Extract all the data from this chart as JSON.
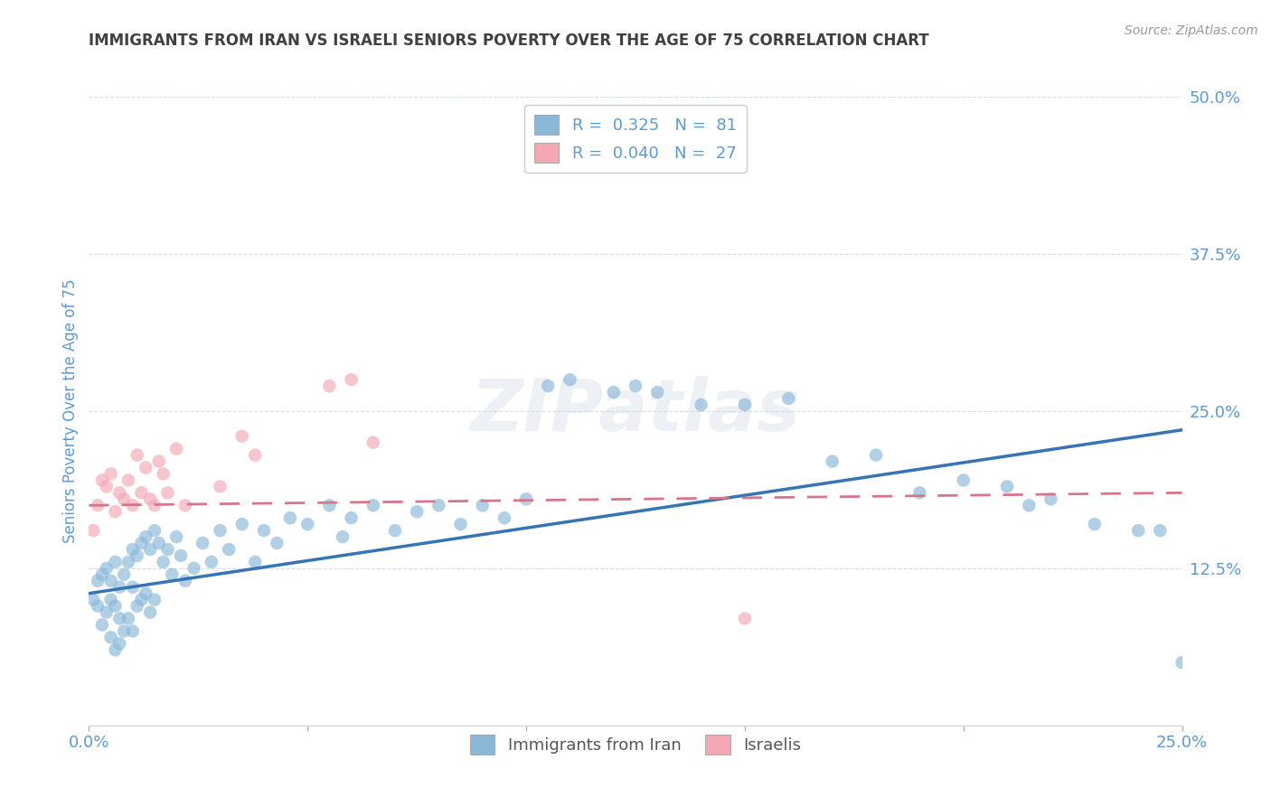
{
  "title": "IMMIGRANTS FROM IRAN VS ISRAELI SENIORS POVERTY OVER THE AGE OF 75 CORRELATION CHART",
  "source": "Source: ZipAtlas.com",
  "ylabel": "Seniors Poverty Over the Age of 75",
  "xlim": [
    0.0,
    0.25
  ],
  "ylim": [
    0.0,
    0.5
  ],
  "xticks": [
    0.0,
    0.05,
    0.1,
    0.15,
    0.2,
    0.25
  ],
  "xticklabels": [
    "0.0%",
    "",
    "",
    "",
    "",
    "25.0%"
  ],
  "yticks": [
    0.0,
    0.125,
    0.25,
    0.375,
    0.5
  ],
  "yticklabels": [
    "",
    "12.5%",
    "25.0%",
    "37.5%",
    "50.0%"
  ],
  "legend_r1": "R =  0.325",
  "legend_n1": "N =  81",
  "legend_r2": "R =  0.040",
  "legend_n2": "N =  27",
  "blue_color": "#89b8d8",
  "pink_color": "#f4a7b4",
  "blue_line_color": "#3574b5",
  "pink_line_color": "#d9748a",
  "axis_label_color": "#5b9bd5",
  "title_color": "#404040",
  "watermark": "ZIPatlas",
  "blue_scatter_x": [
    0.001,
    0.002,
    0.002,
    0.003,
    0.003,
    0.004,
    0.004,
    0.005,
    0.005,
    0.005,
    0.006,
    0.006,
    0.006,
    0.007,
    0.007,
    0.007,
    0.008,
    0.008,
    0.009,
    0.009,
    0.01,
    0.01,
    0.01,
    0.011,
    0.011,
    0.012,
    0.012,
    0.013,
    0.013,
    0.014,
    0.014,
    0.015,
    0.015,
    0.016,
    0.017,
    0.018,
    0.019,
    0.02,
    0.021,
    0.022,
    0.024,
    0.026,
    0.028,
    0.03,
    0.032,
    0.035,
    0.038,
    0.04,
    0.043,
    0.046,
    0.05,
    0.055,
    0.058,
    0.06,
    0.065,
    0.07,
    0.075,
    0.08,
    0.085,
    0.09,
    0.095,
    0.1,
    0.105,
    0.11,
    0.12,
    0.125,
    0.13,
    0.14,
    0.15,
    0.16,
    0.17,
    0.18,
    0.19,
    0.2,
    0.21,
    0.215,
    0.22,
    0.23,
    0.24,
    0.245,
    0.25
  ],
  "blue_scatter_y": [
    0.1,
    0.115,
    0.095,
    0.12,
    0.08,
    0.125,
    0.09,
    0.115,
    0.1,
    0.07,
    0.13,
    0.095,
    0.06,
    0.11,
    0.085,
    0.065,
    0.12,
    0.075,
    0.13,
    0.085,
    0.14,
    0.11,
    0.075,
    0.135,
    0.095,
    0.145,
    0.1,
    0.15,
    0.105,
    0.14,
    0.09,
    0.155,
    0.1,
    0.145,
    0.13,
    0.14,
    0.12,
    0.15,
    0.135,
    0.115,
    0.125,
    0.145,
    0.13,
    0.155,
    0.14,
    0.16,
    0.13,
    0.155,
    0.145,
    0.165,
    0.16,
    0.175,
    0.15,
    0.165,
    0.175,
    0.155,
    0.17,
    0.175,
    0.16,
    0.175,
    0.165,
    0.18,
    0.27,
    0.275,
    0.265,
    0.27,
    0.265,
    0.255,
    0.255,
    0.26,
    0.21,
    0.215,
    0.185,
    0.195,
    0.19,
    0.175,
    0.18,
    0.16,
    0.155,
    0.155,
    0.05
  ],
  "pink_scatter_x": [
    0.001,
    0.002,
    0.003,
    0.004,
    0.005,
    0.006,
    0.007,
    0.008,
    0.009,
    0.01,
    0.011,
    0.012,
    0.013,
    0.014,
    0.015,
    0.016,
    0.017,
    0.018,
    0.02,
    0.022,
    0.03,
    0.035,
    0.038,
    0.055,
    0.06,
    0.065,
    0.15
  ],
  "pink_scatter_y": [
    0.155,
    0.175,
    0.195,
    0.19,
    0.2,
    0.17,
    0.185,
    0.18,
    0.195,
    0.175,
    0.215,
    0.185,
    0.205,
    0.18,
    0.175,
    0.21,
    0.2,
    0.185,
    0.22,
    0.175,
    0.19,
    0.23,
    0.215,
    0.27,
    0.275,
    0.225,
    0.085
  ],
  "blue_trendline_x0": 0.0,
  "blue_trendline_y0": 0.105,
  "blue_trendline_x1": 0.25,
  "blue_trendline_y1": 0.235,
  "pink_trendline_x0": 0.0,
  "pink_trendline_y0": 0.175,
  "pink_trendline_x1": 0.25,
  "pink_trendline_y1": 0.185
}
